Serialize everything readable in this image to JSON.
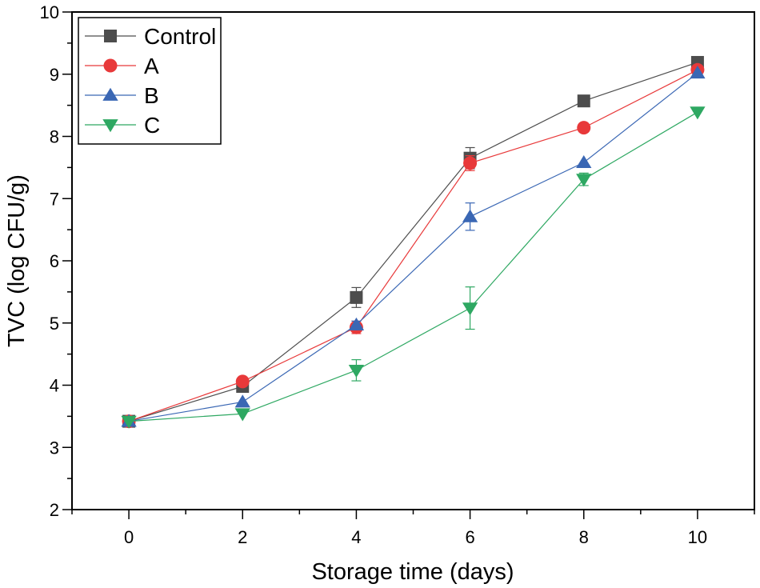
{
  "chart_data": {
    "type": "line",
    "title": "",
    "xlabel": "Storage time (days)",
    "ylabel": "TVC (log CFU/g)",
    "xlim": [
      -1,
      11
    ],
    "ylim": [
      2,
      10
    ],
    "x_ticks": [
      0,
      2,
      4,
      6,
      8,
      10
    ],
    "y_ticks": [
      2,
      3,
      4,
      5,
      6,
      7,
      8,
      9,
      10
    ],
    "grid": false,
    "legend_position": "top-left",
    "x": [
      0,
      2,
      4,
      6,
      8,
      10
    ],
    "series": [
      {
        "name": "Control",
        "marker": "square",
        "color": "#4d4d4d",
        "values": [
          3.42,
          3.98,
          5.41,
          7.65,
          8.57,
          9.19
        ],
        "errors": [
          0.03,
          0.03,
          0.16,
          0.17,
          0.03,
          0.03
        ]
      },
      {
        "name": "A",
        "marker": "circle",
        "color": "#e8393a",
        "values": [
          3.42,
          4.06,
          4.93,
          7.57,
          8.14,
          9.07
        ],
        "errors": [
          0.03,
          0.03,
          0.1,
          0.12,
          0.03,
          0.03
        ]
      },
      {
        "name": "B",
        "marker": "triangle-up",
        "color": "#3a67b4",
        "values": [
          3.42,
          3.73,
          4.97,
          6.71,
          7.58,
          9.02
        ],
        "errors": [
          0.03,
          0.03,
          0.06,
          0.22,
          0.03,
          0.03
        ]
      },
      {
        "name": "C",
        "marker": "triangle-down",
        "color": "#2ea862",
        "values": [
          3.42,
          3.54,
          4.24,
          5.24,
          7.31,
          8.39
        ],
        "errors": [
          0.03,
          0.05,
          0.17,
          0.34,
          0.1,
          0.03
        ]
      }
    ]
  }
}
